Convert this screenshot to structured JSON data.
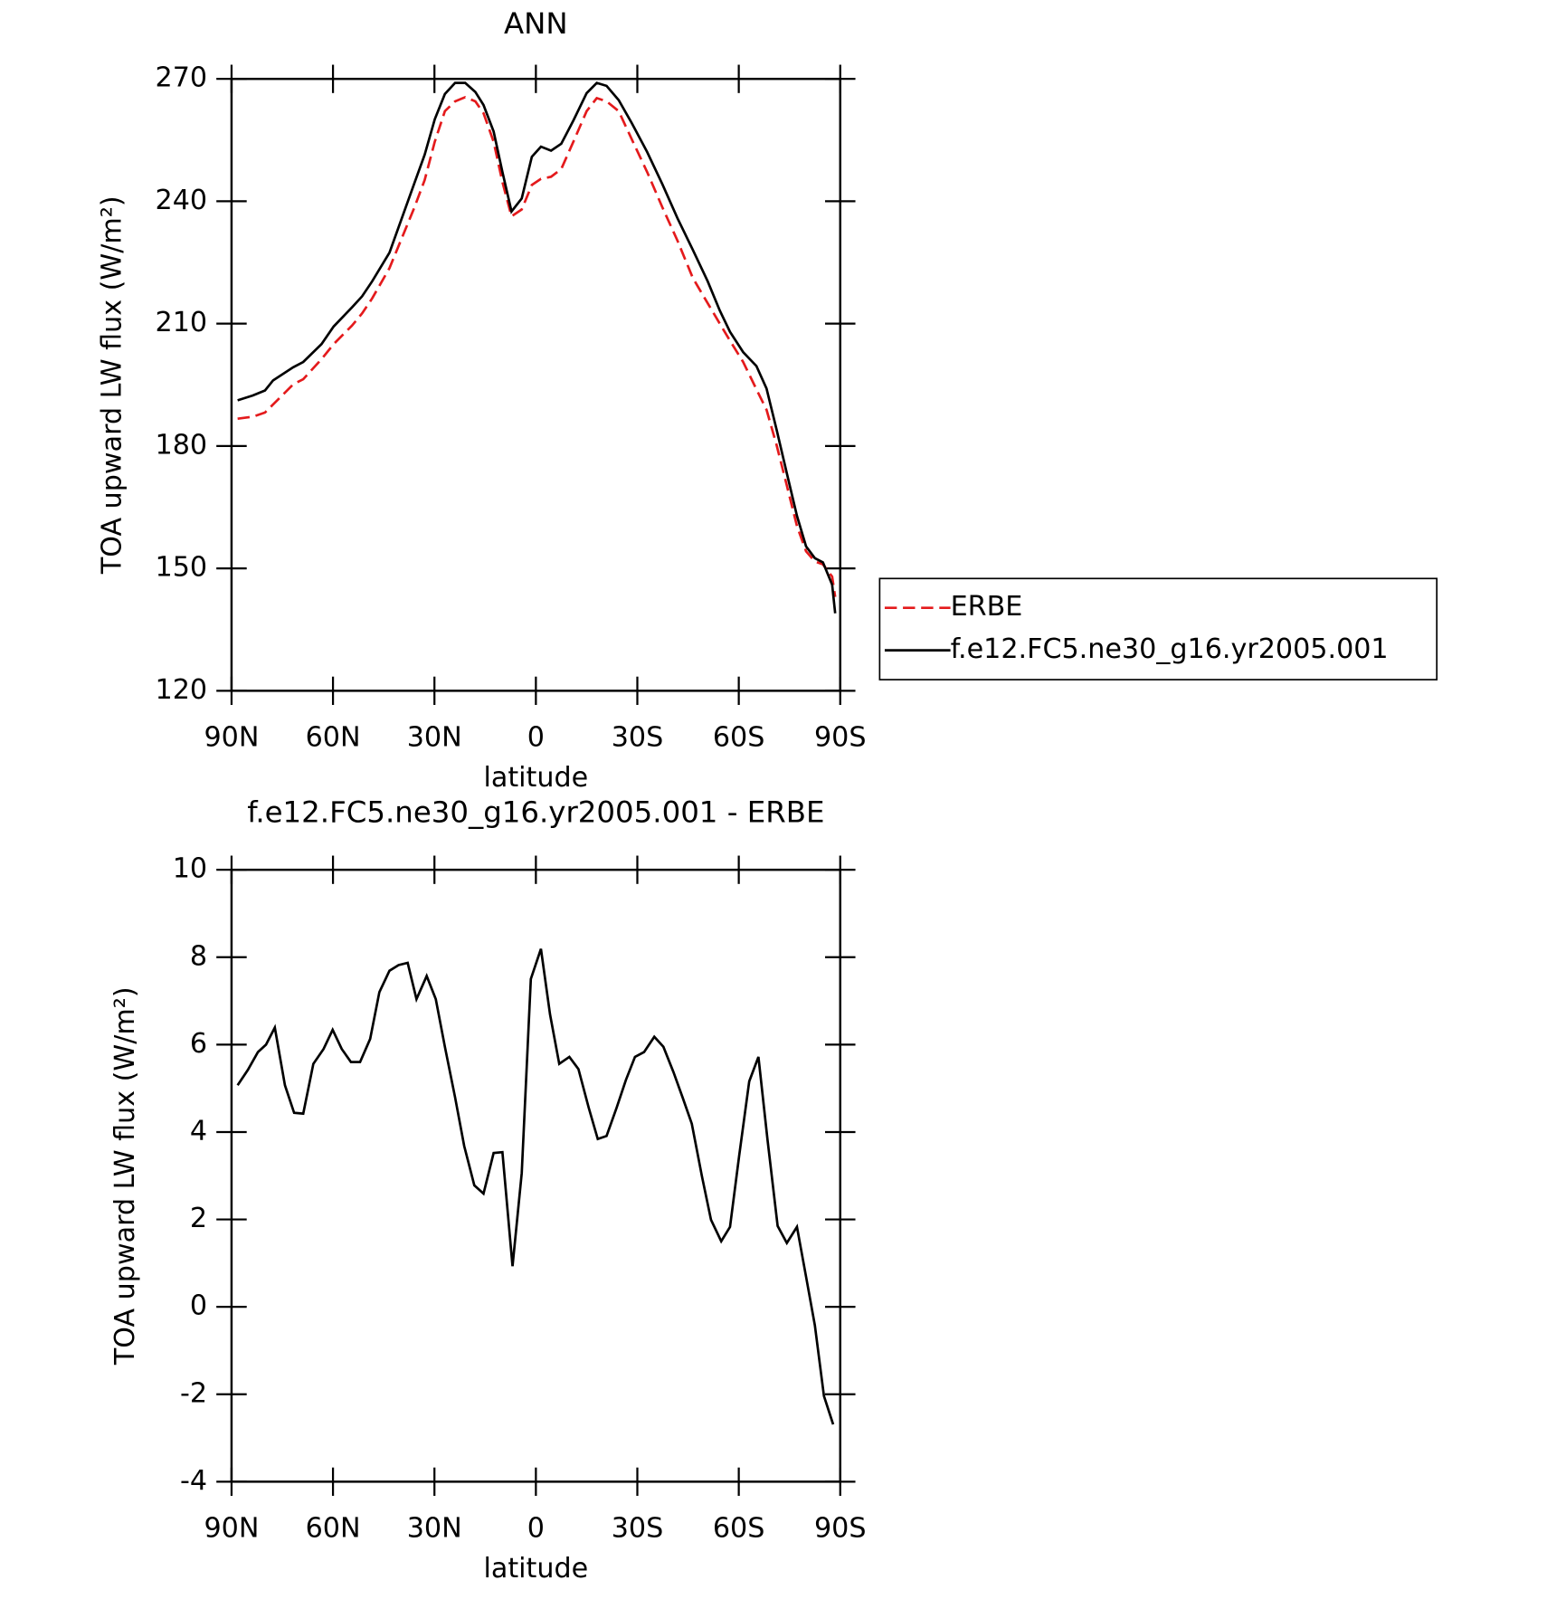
{
  "chart_data": [
    {
      "type": "line",
      "title": "ANN",
      "xlabel": "latitude",
      "ylabel": "TOA upward LW flux (W/m²)",
      "xlim": [
        90,
        -90
      ],
      "xticks": [
        {
          "value": 90,
          "label": "90N"
        },
        {
          "value": 60,
          "label": "60N"
        },
        {
          "value": 30,
          "label": "30N"
        },
        0,
        {
          "value": -30,
          "label": "30S"
        },
        {
          "value": -60,
          "label": "60S"
        },
        {
          "value": -90,
          "label": "90S"
        }
      ],
      "ylim": [
        120,
        270
      ],
      "yticks": [
        120,
        150,
        180,
        210,
        240,
        270
      ],
      "x": [
        88.2,
        83.7,
        80.1,
        77.7,
        71.8,
        68.8,
        63.4,
        59.8,
        54.4,
        51.4,
        48.4,
        43.3,
        35.9,
        32.9,
        29.9,
        26.9,
        23.9,
        20.9,
        17.9,
        15.5,
        12.5,
        9.9,
        7.2,
        4.2,
        1.2,
        -1.5,
        -4.5,
        -7.5,
        -11.1,
        -15,
        -18,
        -20.9,
        -24.5,
        -28.4,
        -32.9,
        -37.4,
        -41.9,
        -46.4,
        -50.8,
        -54.4,
        -57.4,
        -61.3,
        -65.2,
        -68.2,
        -71.2,
        -74.2,
        -77.2,
        -79.9,
        -82.5,
        -84.9,
        -87.6,
        -88.5
      ],
      "series": [
        {
          "name": "ERBE",
          "color": "#e41a1c",
          "style": "dashed",
          "values": [
            186.7,
            187.2,
            188.2,
            190.2,
            195.1,
            196.4,
            201.3,
            205,
            209.5,
            212.5,
            216.2,
            223.6,
            238.5,
            245.2,
            254.6,
            262.1,
            264.5,
            265.5,
            264.5,
            261.6,
            254.6,
            244.7,
            236.3,
            238,
            244,
            245.5,
            246,
            247.9,
            254.6,
            262.1,
            265.3,
            264.5,
            262.1,
            255.1,
            247.2,
            238.5,
            230.3,
            221.2,
            215,
            210,
            205.8,
            200.6,
            193.9,
            188.9,
            180.2,
            170.3,
            160.4,
            154.2,
            151.7,
            151,
            148,
            143
          ]
        },
        {
          "name": "f.e12.FC5.ne30_g16.yr2005.001",
          "color": "#000000",
          "style": "solid",
          "values": [
            191.2,
            192.4,
            193.6,
            196.1,
            199.3,
            200.6,
            205,
            209.3,
            214,
            216.7,
            220.4,
            227.4,
            244.5,
            251.4,
            260.1,
            266.3,
            269,
            269,
            266.8,
            263.6,
            257.1,
            247.2,
            237.5,
            240.7,
            250.9,
            253.4,
            252.4,
            254.1,
            259.8,
            266.5,
            269,
            268.3,
            264.8,
            259.1,
            252.1,
            244.2,
            235.8,
            228.1,
            220.4,
            213.2,
            208,
            203,
            199.6,
            194.1,
            184,
            173.3,
            162.9,
            155.4,
            152.5,
            151.5,
            146,
            139
          ]
        }
      ]
    },
    {
      "type": "line",
      "title": "f.e12.FC5.ne30_g16.yr2005.001 - ERBE",
      "xlabel": "latitude",
      "ylabel": "TOA upward LW flux (W/m²)",
      "xlim": [
        90,
        -90
      ],
      "xticks": [
        {
          "value": 90,
          "label": "90N"
        },
        {
          "value": 60,
          "label": "60N"
        },
        {
          "value": 30,
          "label": "30N"
        },
        0,
        {
          "value": -30,
          "label": "30S"
        },
        {
          "value": -60,
          "label": "60S"
        },
        {
          "value": -90,
          "label": "90S"
        }
      ],
      "ylim": [
        -4,
        10
      ],
      "yticks": [
        -4,
        -2,
        0,
        2,
        4,
        6,
        8,
        10
      ],
      "x": [
        88.2,
        85.2,
        82.2,
        79.8,
        77.2,
        74.2,
        71.5,
        68.8,
        65.8,
        62.8,
        60.1,
        57.4,
        54.7,
        52,
        49,
        46.3,
        43.3,
        40.6,
        37.9,
        35.3,
        32.3,
        29.6,
        26.9,
        23.9,
        21.2,
        18.2,
        15.5,
        12.5,
        9.9,
        6.9,
        4.2,
        1.5,
        -1.5,
        -4.2,
        -6.9,
        -9.9,
        -12.6,
        -15.6,
        -18.3,
        -20.9,
        -23.9,
        -26.6,
        -29.3,
        -32,
        -35,
        -37.7,
        -40.7,
        -43.4,
        -46.1,
        -49.1,
        -51.8,
        -54.8,
        -57.4,
        -60.1,
        -63.1,
        -65.8,
        -68.5,
        -71.5,
        -74.2,
        -77.2,
        -79.9,
        -82.5,
        -85.2,
        -87.9
      ],
      "series": [
        {
          "color": "#000000",
          "style": "solid",
          "values": [
            5.07,
            5.42,
            5.83,
            6,
            6.39,
            5.07,
            4.44,
            4.42,
            5.56,
            5.9,
            6.34,
            5.9,
            5.6,
            5.6,
            6.13,
            7.2,
            7.69,
            7.82,
            7.87,
            7.04,
            7.57,
            7.04,
            5.95,
            4.79,
            3.68,
            2.78,
            2.59,
            3.52,
            3.54,
            0.93,
            3.06,
            7.5,
            8.19,
            6.69,
            5.56,
            5.72,
            5.44,
            4.56,
            3.84,
            3.91,
            4.56,
            5.19,
            5.72,
            5.83,
            6.18,
            5.95,
            5.37,
            4.79,
            4.19,
            2.99,
            1.99,
            1.5,
            1.83,
            3.45,
            5.16,
            5.72,
            3.82,
            1.85,
            1.46,
            1.83,
            0.69,
            -0.42,
            -2.04,
            -2.69
          ]
        }
      ]
    }
  ]
}
